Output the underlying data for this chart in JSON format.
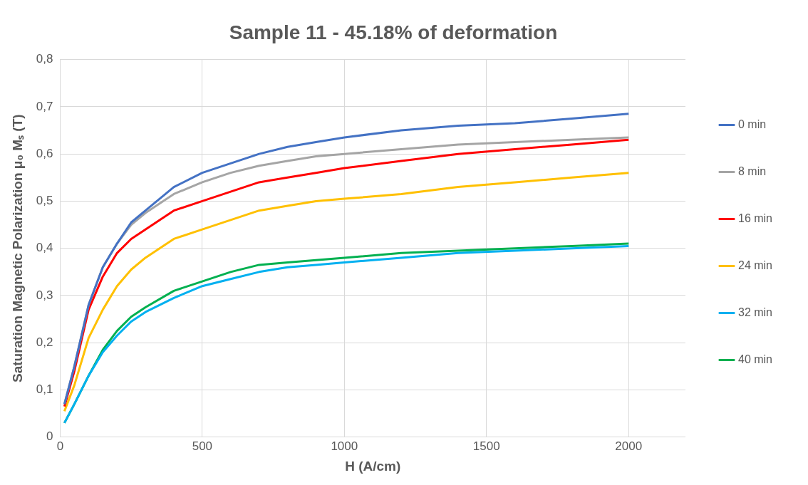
{
  "chart_data": {
    "type": "line",
    "title": "Sample 11 - 45.18% of deformation",
    "xlabel": "H (A/cm)",
    "ylabel": "Saturation Magnetic Polarization μ₀ Mₛ (T)",
    "x": [
      15,
      50,
      100,
      150,
      200,
      250,
      300,
      400,
      500,
      600,
      700,
      800,
      900,
      1000,
      1200,
      1400,
      1600,
      1800,
      2000
    ],
    "series": [
      {
        "name": "0 min",
        "color": "#4472c4",
        "values": [
          0.07,
          0.15,
          0.28,
          0.36,
          0.41,
          0.455,
          0.48,
          0.53,
          0.56,
          0.58,
          0.6,
          0.615,
          0.625,
          0.635,
          0.65,
          0.66,
          0.665,
          0.675,
          0.685
        ]
      },
      {
        "name": "8 min",
        "color": "#a5a5a5",
        "values": [
          0.07,
          0.15,
          0.28,
          0.36,
          0.41,
          0.45,
          0.475,
          0.515,
          0.54,
          0.56,
          0.575,
          0.585,
          0.595,
          0.6,
          0.61,
          0.62,
          0.625,
          0.63,
          0.635
        ]
      },
      {
        "name": "16 min",
        "color": "#ff0000",
        "values": [
          0.065,
          0.14,
          0.27,
          0.34,
          0.39,
          0.42,
          0.44,
          0.48,
          0.5,
          0.52,
          0.54,
          0.55,
          0.56,
          0.57,
          0.585,
          0.6,
          0.61,
          0.62,
          0.63
        ]
      },
      {
        "name": "24 min",
        "color": "#ffc000",
        "values": [
          0.055,
          0.11,
          0.21,
          0.27,
          0.32,
          0.355,
          0.38,
          0.42,
          0.44,
          0.46,
          0.48,
          0.49,
          0.5,
          0.505,
          0.515,
          0.53,
          0.54,
          0.55,
          0.56
        ]
      },
      {
        "name": "32 min",
        "color": "#00b0f0",
        "values": [
          0.03,
          0.07,
          0.13,
          0.18,
          0.215,
          0.245,
          0.265,
          0.295,
          0.32,
          0.335,
          0.35,
          0.36,
          0.365,
          0.37,
          0.38,
          0.39,
          0.395,
          0.4,
          0.405
        ]
      },
      {
        "name": "40 min",
        "color": "#00b050",
        "values": [
          0.03,
          0.07,
          0.13,
          0.185,
          0.225,
          0.255,
          0.275,
          0.31,
          0.33,
          0.35,
          0.365,
          0.37,
          0.375,
          0.38,
          0.39,
          0.395,
          0.4,
          0.405,
          0.41
        ]
      }
    ],
    "xlim": [
      0,
      2200
    ],
    "xticks": [
      0,
      500,
      1000,
      1500,
      2000
    ],
    "ylim": [
      0,
      0.8
    ],
    "yticks": [
      0,
      {
        "value": 0.1,
        "label": "0,1"
      },
      {
        "value": 0.2,
        "label": "0,2"
      },
      {
        "value": 0.3,
        "label": "0,3"
      },
      {
        "value": 0.4,
        "label": "0,4"
      },
      {
        "value": 0.5,
        "label": "0,5"
      },
      {
        "value": 0.6,
        "label": "0,6"
      },
      {
        "value": 0.7,
        "label": "0,7"
      },
      {
        "value": 0.8,
        "label": "0,8"
      }
    ],
    "grid": true,
    "legend": "right",
    "line_style": "solid"
  }
}
